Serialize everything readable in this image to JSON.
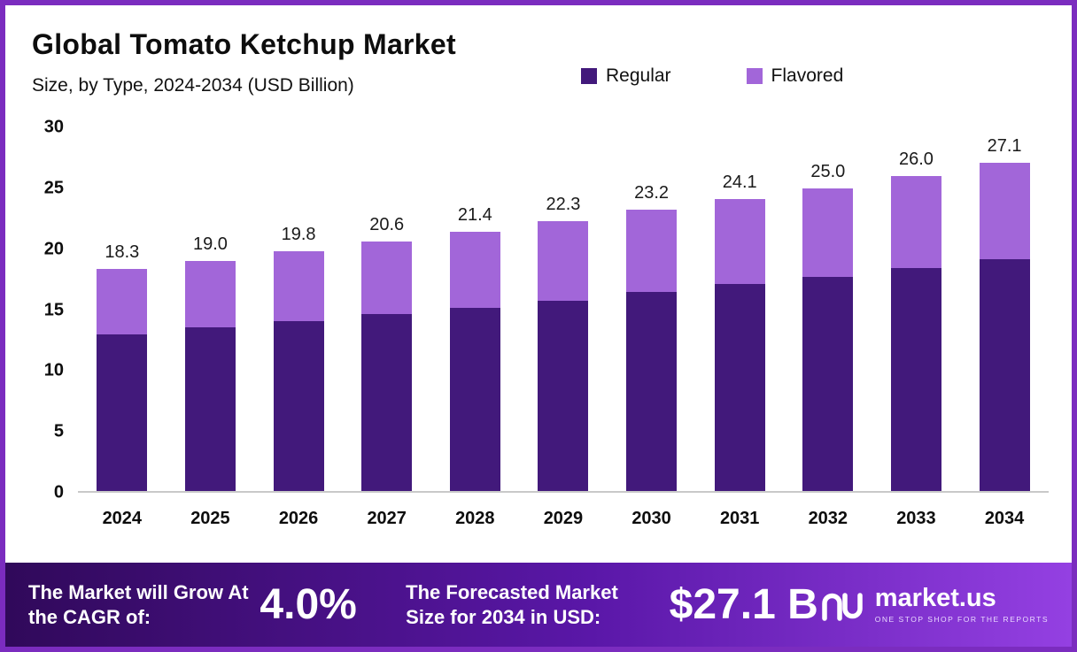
{
  "page": {
    "border_color": "#7b2cbf",
    "background": "#ffffff"
  },
  "header": {
    "title": "Global Tomato Ketchup Market",
    "subtitle": "Size, by Type, 2024-2034 (USD Billion)"
  },
  "legend": {
    "items": [
      {
        "label": "Regular",
        "color": "#42197b"
      },
      {
        "label": "Flavored",
        "color": "#a266d9"
      }
    ]
  },
  "chart_data": {
    "type": "bar",
    "stacked": true,
    "title": "Global Tomato Ketchup Market Size, by Type, 2024-2034 (USD Billion)",
    "categories": [
      "2024",
      "2025",
      "2026",
      "2027",
      "2028",
      "2029",
      "2030",
      "2031",
      "2032",
      "2033",
      "2034"
    ],
    "series": [
      {
        "name": "Regular",
        "color": "#42197b",
        "values": [
          12.9,
          13.5,
          14.0,
          14.6,
          15.1,
          15.7,
          16.4,
          17.1,
          17.7,
          18.4,
          19.1
        ]
      },
      {
        "name": "Flavored",
        "color": "#a266d9",
        "values": [
          5.4,
          5.5,
          5.8,
          6.0,
          6.3,
          6.6,
          6.8,
          7.0,
          7.3,
          7.6,
          8.0
        ]
      }
    ],
    "totals": [
      18.3,
      19.0,
      19.8,
      20.6,
      21.4,
      22.3,
      23.2,
      24.1,
      25.0,
      26.0,
      27.1
    ],
    "total_labels": [
      "18.3",
      "19.0",
      "19.8",
      "20.6",
      "21.4",
      "22.3",
      "23.2",
      "24.1",
      "25.0",
      "26.0",
      "27.1"
    ],
    "xlabel": "",
    "ylabel": "",
    "ylim": [
      0,
      30
    ],
    "yticks": [
      0,
      5,
      10,
      15,
      20,
      25,
      30
    ],
    "grid": false,
    "legend_position": "top-right"
  },
  "footer": {
    "cagr_label": "The Market will Grow At the CAGR of:",
    "cagr_value": "4.0%",
    "forecast_label": "The Forecasted Market Size for 2034 in USD:",
    "forecast_value": "$27.1 B",
    "brand_name": "market.us",
    "brand_tagline": "ONE STOP SHOP FOR THE REPORTS",
    "gradient": [
      "#30095a",
      "#9440e2"
    ]
  }
}
